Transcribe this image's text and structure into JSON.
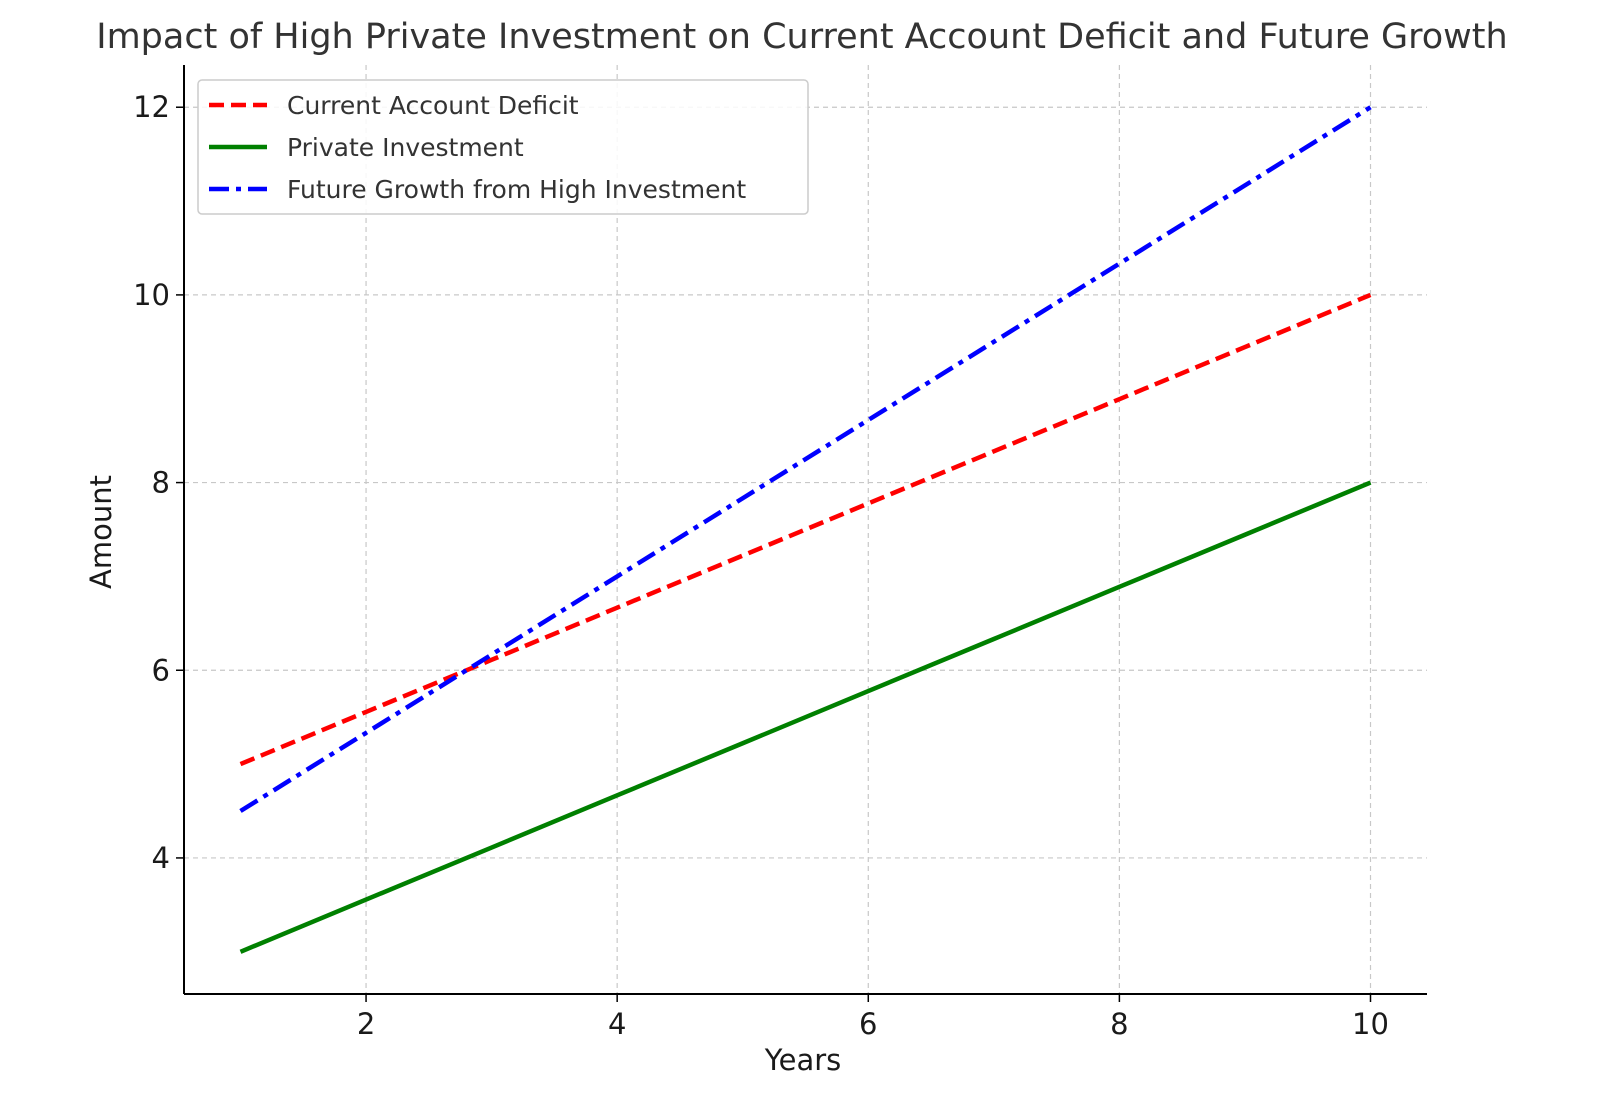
{
  "chart_data": {
    "type": "line",
    "title": "Impact of High Private Investment on Current Account Deficit and Future Growth",
    "xlabel": "Years",
    "ylabel": "Amount",
    "xlim": [
      0.55,
      10.45
    ],
    "ylim": [
      2.55,
      12.45
    ],
    "xticks": [
      2,
      4,
      6,
      8,
      10
    ],
    "yticks": [
      4,
      6,
      8,
      10,
      12
    ],
    "grid": true,
    "legend_position": "top-left",
    "x": [
      1,
      2,
      3,
      4,
      5,
      6,
      7,
      8,
      9,
      10
    ],
    "series": [
      {
        "name": "Current Account Deficit",
        "color": "#ff0000",
        "style": "dashed",
        "values": [
          5.0,
          5.556,
          6.111,
          6.667,
          7.222,
          7.778,
          8.333,
          8.889,
          9.444,
          10.0
        ]
      },
      {
        "name": "Private Investment",
        "color": "#008000",
        "style": "solid",
        "values": [
          3.0,
          3.556,
          4.111,
          4.667,
          5.222,
          5.778,
          6.333,
          6.889,
          7.444,
          8.0
        ]
      },
      {
        "name": "Future Growth from High Investment",
        "color": "#0000ff",
        "style": "dashdot",
        "values": [
          4.5,
          5.333,
          6.167,
          7.0,
          7.833,
          8.667,
          9.5,
          10.333,
          11.167,
          12.0
        ]
      }
    ]
  }
}
